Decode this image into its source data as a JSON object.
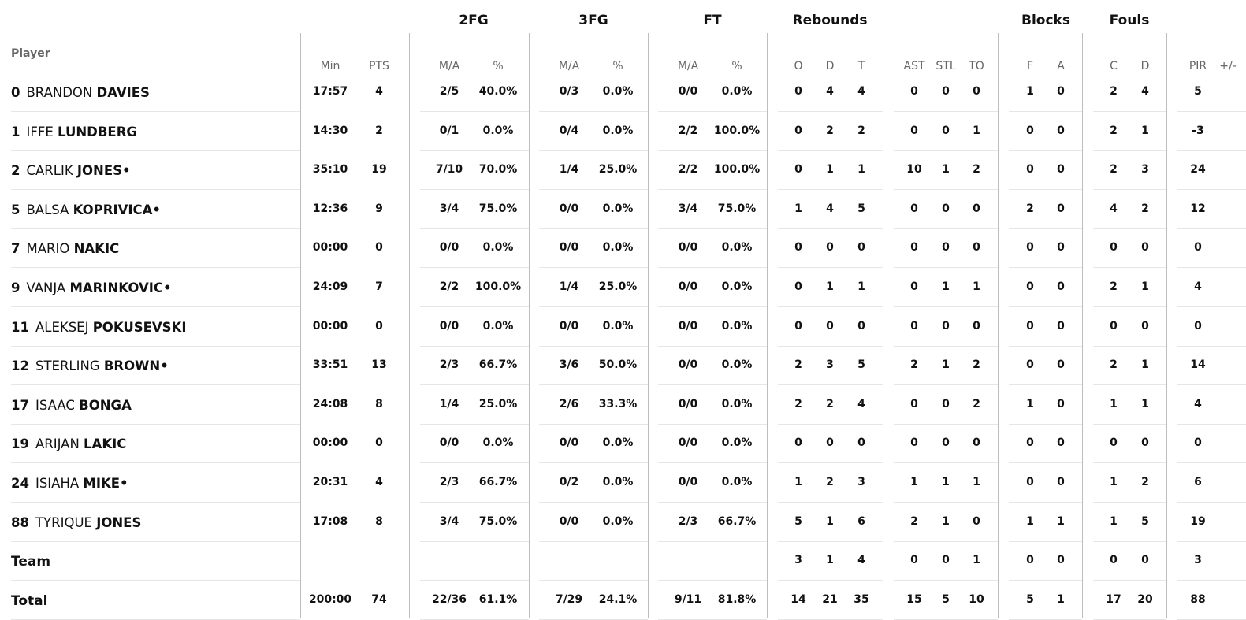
{
  "header": {
    "player_label": "Player",
    "groups": [
      {
        "key": "g2fg",
        "label": "2FG"
      },
      {
        "key": "g3fg",
        "label": "3FG"
      },
      {
        "key": "gft",
        "label": "FT"
      },
      {
        "key": "greb",
        "label": "Rebounds"
      },
      {
        "key": "gblk",
        "label": "Blocks"
      },
      {
        "key": "gfoul",
        "label": "Fouls"
      }
    ],
    "columns": [
      "Min",
      "PTS",
      "M/A",
      "%",
      "M/A",
      "%",
      "M/A",
      "%",
      "O",
      "D",
      "T",
      "AST",
      "STL",
      "TO",
      "F",
      "A",
      "C",
      "D",
      "PIR",
      "+/-"
    ]
  },
  "players": [
    {
      "number": "0",
      "first": "BRANDON",
      "last": "DAVIES",
      "starter": false,
      "stats": [
        "17:57",
        "4",
        "2/5",
        "40.0%",
        "0/3",
        "0.0%",
        "0/0",
        "0.0%",
        "0",
        "4",
        "4",
        "0",
        "0",
        "0",
        "1",
        "0",
        "2",
        "4",
        "5",
        ""
      ]
    },
    {
      "number": "1",
      "first": "IFFE",
      "last": "LUNDBERG",
      "starter": false,
      "stats": [
        "14:30",
        "2",
        "0/1",
        "0.0%",
        "0/4",
        "0.0%",
        "2/2",
        "100.0%",
        "0",
        "2",
        "2",
        "0",
        "0",
        "1",
        "0",
        "0",
        "2",
        "1",
        "-3",
        ""
      ]
    },
    {
      "number": "2",
      "first": "CARLIK",
      "last": "JONES",
      "starter": true,
      "stats": [
        "35:10",
        "19",
        "7/10",
        "70.0%",
        "1/4",
        "25.0%",
        "2/2",
        "100.0%",
        "0",
        "1",
        "1",
        "10",
        "1",
        "2",
        "0",
        "0",
        "2",
        "3",
        "24",
        ""
      ]
    },
    {
      "number": "5",
      "first": "BALSA",
      "last": "KOPRIVICA",
      "starter": true,
      "stats": [
        "12:36",
        "9",
        "3/4",
        "75.0%",
        "0/0",
        "0.0%",
        "3/4",
        "75.0%",
        "1",
        "4",
        "5",
        "0",
        "0",
        "0",
        "2",
        "0",
        "4",
        "2",
        "12",
        ""
      ]
    },
    {
      "number": "7",
      "first": "MARIO",
      "last": "NAKIC",
      "starter": false,
      "stats": [
        "00:00",
        "0",
        "0/0",
        "0.0%",
        "0/0",
        "0.0%",
        "0/0",
        "0.0%",
        "0",
        "0",
        "0",
        "0",
        "0",
        "0",
        "0",
        "0",
        "0",
        "0",
        "0",
        ""
      ]
    },
    {
      "number": "9",
      "first": "VANJA",
      "last": "MARINKOVIC",
      "starter": true,
      "stats": [
        "24:09",
        "7",
        "2/2",
        "100.0%",
        "1/4",
        "25.0%",
        "0/0",
        "0.0%",
        "0",
        "1",
        "1",
        "0",
        "1",
        "1",
        "0",
        "0",
        "2",
        "1",
        "4",
        ""
      ]
    },
    {
      "number": "11",
      "first": "ALEKSEJ",
      "last": "POKUSEVSKI",
      "starter": false,
      "stats": [
        "00:00",
        "0",
        "0/0",
        "0.0%",
        "0/0",
        "0.0%",
        "0/0",
        "0.0%",
        "0",
        "0",
        "0",
        "0",
        "0",
        "0",
        "0",
        "0",
        "0",
        "0",
        "0",
        ""
      ]
    },
    {
      "number": "12",
      "first": "STERLING",
      "last": "BROWN",
      "starter": true,
      "stats": [
        "33:51",
        "13",
        "2/3",
        "66.7%",
        "3/6",
        "50.0%",
        "0/0",
        "0.0%",
        "2",
        "3",
        "5",
        "2",
        "1",
        "2",
        "0",
        "0",
        "2",
        "1",
        "14",
        ""
      ]
    },
    {
      "number": "17",
      "first": "ISAAC",
      "last": "BONGA",
      "starter": false,
      "stats": [
        "24:08",
        "8",
        "1/4",
        "25.0%",
        "2/6",
        "33.3%",
        "0/0",
        "0.0%",
        "2",
        "2",
        "4",
        "0",
        "0",
        "2",
        "1",
        "0",
        "1",
        "1",
        "4",
        ""
      ]
    },
    {
      "number": "19",
      "first": "ARIJAN",
      "last": "LAKIC",
      "starter": false,
      "stats": [
        "00:00",
        "0",
        "0/0",
        "0.0%",
        "0/0",
        "0.0%",
        "0/0",
        "0.0%",
        "0",
        "0",
        "0",
        "0",
        "0",
        "0",
        "0",
        "0",
        "0",
        "0",
        "0",
        ""
      ]
    },
    {
      "number": "24",
      "first": "ISIAHA",
      "last": "MIKE",
      "starter": true,
      "stats": [
        "20:31",
        "4",
        "2/3",
        "66.7%",
        "0/2",
        "0.0%",
        "0/0",
        "0.0%",
        "1",
        "2",
        "3",
        "1",
        "1",
        "1",
        "0",
        "0",
        "1",
        "2",
        "6",
        ""
      ]
    },
    {
      "number": "88",
      "first": "TYRIQUE",
      "last": "JONES",
      "starter": false,
      "stats": [
        "17:08",
        "8",
        "3/4",
        "75.0%",
        "0/0",
        "0.0%",
        "2/3",
        "66.7%",
        "5",
        "1",
        "6",
        "2",
        "1",
        "0",
        "1",
        "1",
        "1",
        "5",
        "19",
        ""
      ]
    }
  ],
  "team": {
    "label": "Team",
    "stats": [
      "",
      "",
      "",
      "",
      "",
      "",
      "",
      "",
      "3",
      "1",
      "4",
      "0",
      "0",
      "1",
      "0",
      "0",
      "0",
      "0",
      "3",
      ""
    ]
  },
  "total": {
    "label": "Total",
    "stats": [
      "200:00",
      "74",
      "22/36",
      "61.1%",
      "7/29",
      "24.1%",
      "9/11",
      "81.8%",
      "14",
      "21",
      "35",
      "15",
      "5",
      "10",
      "5",
      "1",
      "17",
      "20",
      "88",
      ""
    ]
  },
  "starter_mark": "•"
}
